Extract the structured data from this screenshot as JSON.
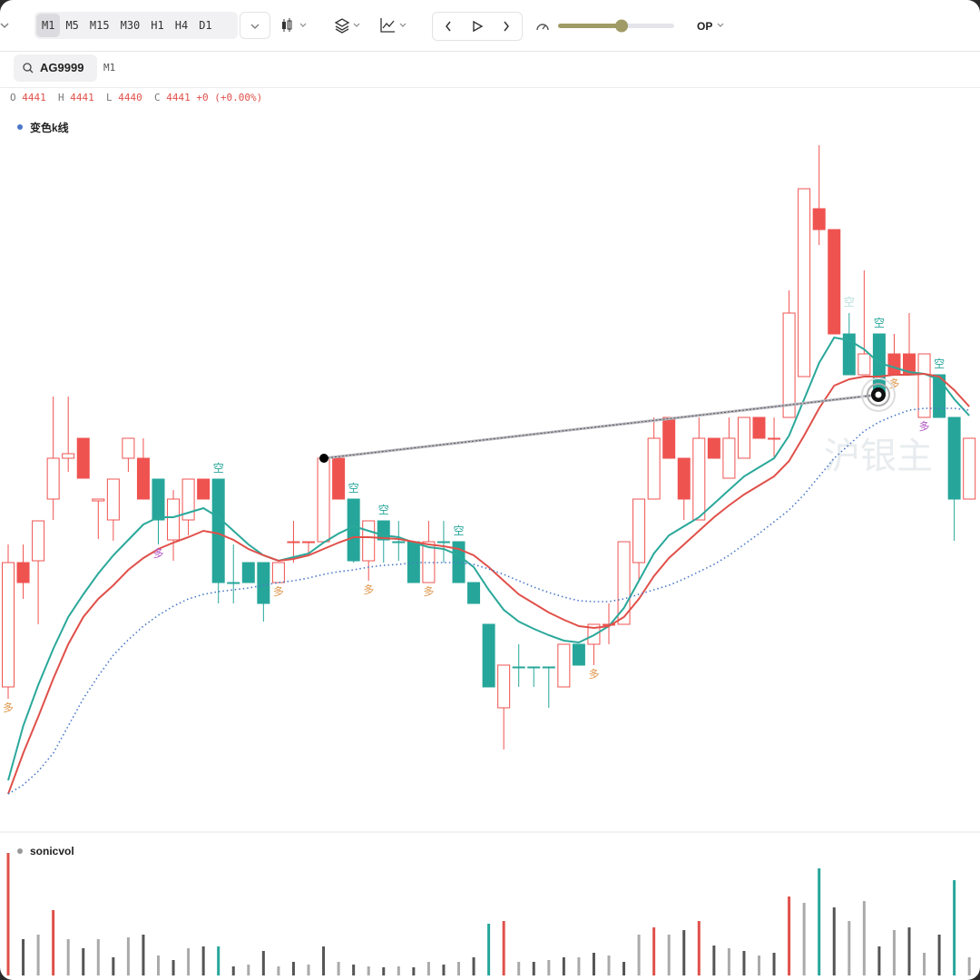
{
  "toolbar": {
    "periods": [
      "M1",
      "M5",
      "M15",
      "M30",
      "H1",
      "H4",
      "D1"
    ],
    "mode": "OP"
  },
  "symbol": {
    "code": "AG9999",
    "period": "M1"
  },
  "quote": {
    "open_label": "O",
    "open": "4441",
    "high_label": "H",
    "high": "4441",
    "low_label": "L",
    "low": "4440",
    "close_label": "C",
    "close": "4441",
    "change": "+0",
    "change_pct": "(+0.00%)"
  },
  "chart_data": {
    "type": "candlestick",
    "legend": "变色k线",
    "watermark": "沪银主",
    "ylim": [
      0,
      81
    ],
    "open": [
      15.3,
      29.0,
      29.2,
      36.0,
      40.5,
      42.7,
      35.8,
      33.7,
      40.5,
      40.5,
      38.2,
      31.5,
      33.7,
      38.2,
      38.2,
      26.8,
      29.0,
      29.0,
      26.8,
      31.3,
      31.3,
      31.3,
      40.5,
      36.0,
      29.2,
      33.6,
      31.3,
      31.3,
      26.8,
      31.3,
      31.3,
      26.8,
      22.2,
      13.0,
      17.5,
      17.5,
      17.5,
      15.3,
      20.0,
      20.0,
      22.2,
      22.2,
      29.0,
      36.0,
      45.0,
      40.5,
      33.7,
      42.7,
      38.3,
      40.5,
      45.0,
      42.7,
      45.0,
      49.5,
      68.0,
      65.7,
      54.2,
      49.7,
      54.2,
      52.0,
      52.0,
      45.0,
      49.7,
      45.0,
      36.0
    ],
    "high": [
      31.0,
      31.0,
      33.6,
      47.3,
      47.3,
      42.7,
      36.0,
      38.2,
      42.7,
      42.7,
      38.2,
      37.0,
      38.2,
      38.2,
      38.2,
      31.0,
      29.0,
      29.0,
      29.0,
      33.6,
      31.3,
      40.5,
      40.5,
      36.0,
      33.6,
      33.6,
      33.6,
      31.3,
      33.6,
      33.6,
      31.3,
      26.8,
      22.2,
      17.7,
      20.0,
      17.5,
      17.5,
      20.0,
      20.0,
      22.2,
      24.5,
      31.3,
      36.0,
      45.0,
      45.0,
      40.5,
      45.0,
      42.7,
      45.0,
      45.0,
      45.0,
      45.0,
      59.0,
      70.2,
      75.0,
      65.7,
      56.5,
      61.2,
      54.2,
      54.2,
      56.5,
      52.0,
      49.7,
      45.0,
      42.7
    ],
    "low": [
      14.0,
      25.0,
      22.2,
      33.7,
      39.0,
      38.3,
      31.6,
      31.4,
      39.0,
      36.0,
      31.0,
      29.2,
      32.0,
      36.0,
      24.5,
      24.5,
      26.8,
      22.5,
      26.8,
      29.0,
      29.8,
      31.3,
      36.0,
      29.0,
      27.0,
      29.0,
      29.2,
      26.8,
      26.8,
      29.0,
      26.8,
      24.5,
      15.3,
      8.4,
      15.3,
      15.3,
      13.0,
      15.3,
      17.7,
      17.7,
      20.0,
      22.2,
      27.0,
      36.0,
      40.5,
      33.7,
      33.7,
      40.5,
      38.3,
      40.5,
      42.7,
      40.5,
      45.0,
      49.5,
      64.0,
      54.2,
      49.7,
      49.7,
      47.5,
      49.7,
      49.7,
      45.0,
      45.0,
      31.4,
      36.0
    ],
    "close": [
      29.0,
      26.8,
      33.6,
      40.5,
      41.0,
      38.3,
      36.0,
      38.2,
      42.7,
      36.0,
      33.7,
      36.0,
      38.2,
      36.0,
      26.8,
      26.8,
      26.8,
      24.5,
      29.0,
      31.3,
      31.3,
      40.5,
      36.0,
      29.2,
      33.6,
      31.5,
      31.3,
      26.8,
      31.3,
      31.3,
      26.8,
      24.5,
      15.3,
      17.7,
      17.5,
      17.5,
      17.5,
      20.0,
      17.7,
      22.2,
      22.2,
      31.3,
      36.0,
      42.7,
      40.5,
      36.0,
      42.7,
      40.5,
      42.7,
      45.0,
      42.7,
      42.7,
      56.5,
      70.2,
      65.7,
      54.2,
      49.7,
      52.0,
      47.5,
      49.7,
      49.7,
      52.0,
      45.0,
      36.0,
      42.7
    ],
    "candle_styles": [
      "hollow",
      "red",
      "hollow",
      "hollow",
      "hollow",
      "red",
      "hollow",
      "hollow",
      "hollow",
      "red",
      "teal",
      "hollow",
      "hollow",
      "red",
      "teal",
      "teal",
      "teal",
      "teal",
      "hollow",
      "hollow",
      "hollow",
      "hollow",
      "red",
      "teal",
      "hollow",
      "teal",
      "teal",
      "teal",
      "hollow",
      "teal",
      "teal",
      "teal",
      "teal",
      "hollow",
      "teal",
      "teal",
      "teal",
      "hollow",
      "teal",
      "hollow",
      "hollow",
      "hollow",
      "hollow",
      "hollow",
      "red",
      "red",
      "hollow",
      "red",
      "hollow",
      "hollow",
      "red",
      "hollow",
      "hollow",
      "hollow",
      "red",
      "red",
      "teal",
      "hollow",
      "teal",
      "red",
      "red",
      "hollow",
      "teal",
      "teal",
      "hollow"
    ],
    "lines": [
      {
        "color": "#2aa89a",
        "values": [
          5.0,
          11.0,
          15.5,
          19.5,
          23.0,
          25.5,
          27.8,
          29.8,
          31.5,
          33.2,
          34.0,
          34.0,
          34.5,
          35.0,
          34.0,
          32.5,
          31.0,
          29.8,
          29.2,
          29.6,
          30.0,
          31.2,
          32.2,
          33.0,
          32.5,
          32.0,
          31.8,
          31.2,
          30.7,
          30.5,
          29.8,
          28.5,
          26.0,
          23.8,
          22.5,
          21.7,
          21.0,
          20.4,
          20.2,
          21.0,
          22.0,
          24.0,
          27.0,
          30.0,
          32.0,
          33.0,
          34.0,
          35.5,
          37.0,
          38.5,
          39.5,
          40.5,
          43.0,
          47.0,
          51.0,
          53.8,
          53.5,
          52.5,
          51.0,
          50.5,
          50.0,
          49.8,
          49.2,
          47.0,
          45.2
        ]
      },
      {
        "color": "#e0504a",
        "values": [
          3.5,
          8.0,
          12.0,
          16.2,
          20.0,
          23.0,
          25.0,
          26.5,
          28.2,
          29.5,
          30.5,
          31.2,
          31.8,
          32.5,
          32.2,
          31.5,
          30.5,
          29.8,
          29.2,
          29.4,
          29.8,
          30.5,
          31.2,
          31.8,
          31.8,
          31.7,
          31.6,
          31.3,
          31.0,
          30.8,
          30.5,
          29.8,
          28.5,
          27.0,
          25.5,
          24.5,
          23.5,
          22.7,
          22.0,
          21.8,
          22.0,
          23.0,
          25.0,
          27.5,
          29.5,
          31.0,
          32.5,
          34.0,
          35.3,
          36.5,
          37.5,
          38.5,
          40.2,
          43.0,
          46.0,
          48.5,
          49.2,
          49.5,
          49.5,
          49.7,
          49.7,
          49.8,
          49.5,
          48.0,
          46.2
        ]
      },
      {
        "color": "#4a78c8",
        "dotted": true,
        "values": [
          3.5,
          4.5,
          6.0,
          8.0,
          11.0,
          14.0,
          16.5,
          18.8,
          20.5,
          22.0,
          23.2,
          24.2,
          25.0,
          25.5,
          25.8,
          26.0,
          26.2,
          26.5,
          26.8,
          27.0,
          27.3,
          27.7,
          28.0,
          28.2,
          28.5,
          28.7,
          28.8,
          29.0,
          29.0,
          29.0,
          29.0,
          28.8,
          28.3,
          27.7,
          27.0,
          26.3,
          25.7,
          25.2,
          24.8,
          24.7,
          24.7,
          25.0,
          25.5,
          26.0,
          26.5,
          27.2,
          28.0,
          28.8,
          29.8,
          31.0,
          32.2,
          33.5,
          34.8,
          36.5,
          38.5,
          40.5,
          42.0,
          43.5,
          44.5,
          45.2,
          45.8,
          46.0,
          46.0,
          46.0,
          45.8
        ]
      }
    ],
    "signals": [
      {
        "text": "多",
        "candle": 0,
        "color": "#e09a50"
      },
      {
        "text": "多",
        "candle": 10,
        "color": "#b25cc4"
      },
      {
        "text": "多",
        "candle": 18,
        "color": "#e09a50"
      },
      {
        "text": "多",
        "candle": 24,
        "color": "#e09a50"
      },
      {
        "text": "多",
        "candle": 28,
        "color": "#e09a50"
      },
      {
        "text": "多",
        "candle": 39,
        "color": "#e09a50"
      },
      {
        "text": "多",
        "candle": 59,
        "color": "#e09a50"
      },
      {
        "text": "多",
        "candle": 61,
        "color": "#b25cc4"
      },
      {
        "text": "空",
        "candle": 14,
        "color": "#26a69a"
      },
      {
        "text": "空",
        "candle": 23,
        "color": "#26a69a"
      },
      {
        "text": "空",
        "candle": 25,
        "color": "#26a69a"
      },
      {
        "text": "空",
        "candle": 30,
        "color": "#26a69a"
      },
      {
        "text": "空",
        "candle": 56,
        "color": "#b8e0dc"
      },
      {
        "text": "空",
        "candle": 58,
        "color": "#26a69a"
      },
      {
        "text": "空",
        "candle": 62,
        "color": "#26a69a"
      }
    ],
    "volume": {
      "title": "sonicvol",
      "ylim": [
        0,
        140
      ],
      "values": [
        135,
        40,
        45,
        72,
        40,
        30,
        40,
        20,
        42,
        45,
        22,
        17,
        30,
        32,
        32,
        10,
        12,
        27,
        10,
        15,
        12,
        32,
        15,
        12,
        10,
        9,
        10,
        9,
        15,
        12,
        15,
        20,
        57,
        60,
        15,
        15,
        17,
        20,
        20,
        25,
        22,
        15,
        45,
        53,
        45,
        50,
        60,
        33,
        30,
        27,
        22,
        25,
        87,
        80,
        118,
        75,
        60,
        82,
        32,
        50,
        53,
        25,
        45,
        105,
        20
      ],
      "colors": [
        "#e0504a",
        "#555555",
        "#aaaaaa",
        "#e0504a",
        "#aaaaaa",
        "#555555",
        "#aaaaaa",
        "#555555",
        "#aaaaaa",
        "#555555",
        "#aaaaaa",
        "#555555",
        "#aaaaaa",
        "#555555",
        "#26a69a",
        "#555555",
        "#aaaaaa",
        "#555555",
        "#aaaaaa",
        "#555555",
        "#aaaaaa",
        "#555555",
        "#aaaaaa",
        "#555555",
        "#aaaaaa",
        "#555555",
        "#aaaaaa",
        "#555555",
        "#aaaaaa",
        "#555555",
        "#aaaaaa",
        "#555555",
        "#26a69a",
        "#e0504a",
        "#aaaaaa",
        "#555555",
        "#aaaaaa",
        "#555555",
        "#aaaaaa",
        "#555555",
        "#aaaaaa",
        "#555555",
        "#aaaaaa",
        "#e0504a",
        "#aaaaaa",
        "#555555",
        "#e0504a",
        "#555555",
        "#aaaaaa",
        "#555555",
        "#aaaaaa",
        "#555555",
        "#e0504a",
        "#aaaaaa",
        "#26a69a",
        "#555555",
        "#aaaaaa",
        "#aaaaaa",
        "#555555",
        "#aaaaaa",
        "#555555",
        "#aaaaaa",
        "#555555",
        "#26a69a",
        "#aaaaaa"
      ]
    }
  }
}
